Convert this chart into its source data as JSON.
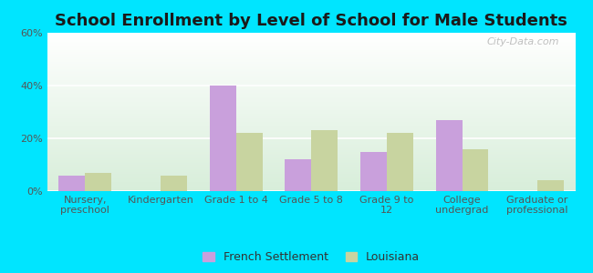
{
  "title": "School Enrollment by Level of School for Male Students",
  "categories": [
    "Nursery,\npreschool",
    "Kindergarten",
    "Grade 1 to 4",
    "Grade 5 to 8",
    "Grade 9 to\n12",
    "College\nundergrad",
    "Graduate or\nprofessional"
  ],
  "french_settlement": [
    6,
    0,
    40,
    12,
    15,
    27,
    0
  ],
  "louisiana": [
    7,
    6,
    22,
    23,
    22,
    16,
    4
  ],
  "french_color": "#c9a0dc",
  "louisiana_color": "#c8d4a0",
  "background_outer": "#00e5ff",
  "ylabel_ticks": [
    "0%",
    "20%",
    "40%",
    "60%"
  ],
  "ytick_values": [
    0,
    20,
    40,
    60
  ],
  "ylim": [
    0,
    60
  ],
  "title_fontsize": 13,
  "tick_fontsize": 8.0,
  "legend_fontsize": 9,
  "bar_width": 0.35,
  "watermark": "City-Data.com"
}
